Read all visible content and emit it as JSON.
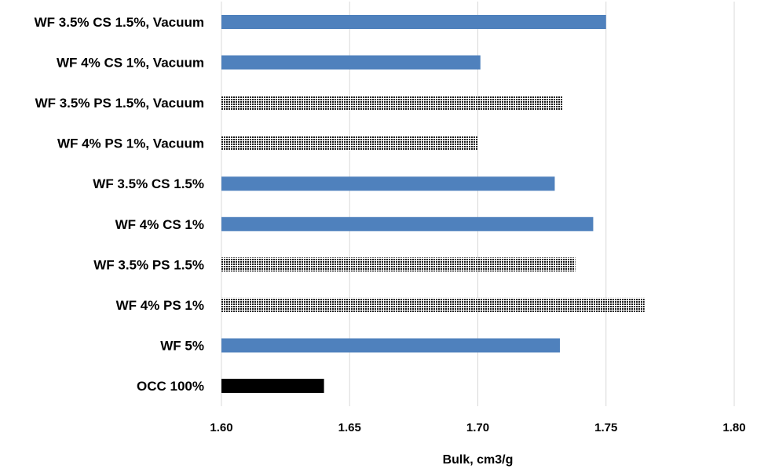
{
  "chart_data": {
    "type": "bar",
    "orientation": "horizontal",
    "title": "",
    "xlabel": "Bulk, cm3/g",
    "ylabel": "",
    "xlim": [
      1.6,
      1.8
    ],
    "xticks": [
      "1.60",
      "1.65",
      "1.70",
      "1.75",
      "1.80"
    ],
    "xtick_values": [
      1.6,
      1.65,
      1.7,
      1.75,
      1.8
    ],
    "grid": "vertical",
    "legend": "none",
    "categories": [
      "WF 3.5% CS 1.5%, Vacuum",
      "WF 4% CS 1%, Vacuum",
      "WF 3.5% PS 1.5%, Vacuum",
      "WF 4% PS 1%, Vacuum",
      "WF 3.5% CS 1.5%",
      "WF 4% CS 1%",
      "WF 3.5% PS 1.5%",
      "WF 4% PS 1%",
      "WF 5%",
      "OCC 100%"
    ],
    "values": [
      1.75,
      1.701,
      1.733,
      1.7,
      1.73,
      1.745,
      1.738,
      1.765,
      1.732,
      1.64
    ],
    "bar_styles": [
      "blue",
      "blue",
      "dotted",
      "dotted",
      "blue",
      "blue",
      "dotted",
      "dotted",
      "blue",
      "black"
    ],
    "colors": {
      "blue": "#4f81bd",
      "dotted": "#1a1a1a",
      "black": "#000000"
    }
  }
}
